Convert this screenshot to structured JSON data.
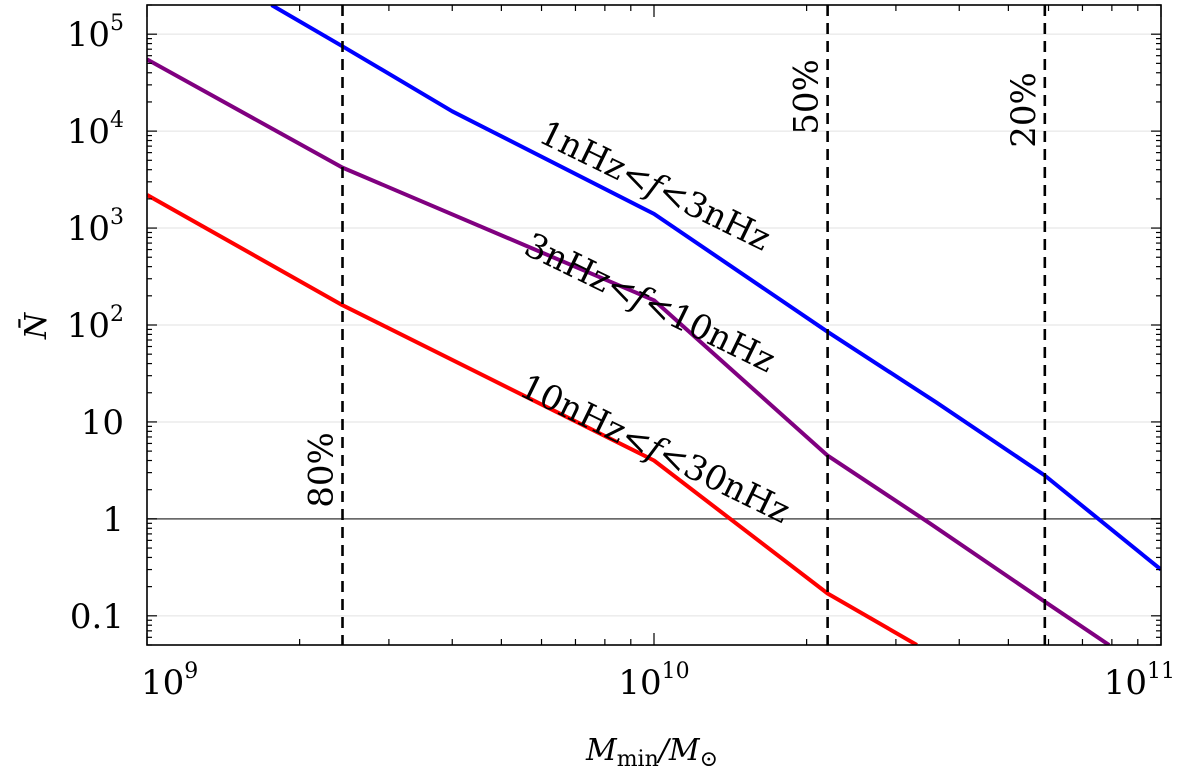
{
  "chart_data": {
    "type": "line",
    "x_scale": "log",
    "y_scale": "log",
    "xlabel_main": "M",
    "xlabel_sub": "min",
    "xlabel_div": "/M",
    "xlabel_sub2": "⊙",
    "ylabel": "N̄",
    "xlim": [
      1000000000.0,
      100000000000.0
    ],
    "ylim": [
      0.05,
      200000
    ],
    "x_ticks": [
      {
        "value": 1000000000.0,
        "base": "10",
        "exp": "9"
      },
      {
        "value": 10000000000.0,
        "base": "10",
        "exp": "10"
      },
      {
        "value": 100000000000.0,
        "base": "10",
        "exp": "11"
      }
    ],
    "y_ticks": [
      {
        "value": 0.1,
        "base": "0.1",
        "exp": ""
      },
      {
        "value": 1,
        "base": "1",
        "exp": ""
      },
      {
        "value": 10,
        "base": "10",
        "exp": ""
      },
      {
        "value": 100,
        "base": "10",
        "exp": "2"
      },
      {
        "value": 1000,
        "base": "10",
        "exp": "3"
      },
      {
        "value": 10000,
        "base": "10",
        "exp": "4"
      },
      {
        "value": 100000,
        "base": "10",
        "exp": "5"
      }
    ],
    "gridlines_y": [
      0.1,
      1,
      10,
      100,
      1000,
      10000,
      100000
    ],
    "series": [
      {
        "name": "1nHz < f < 3nHz",
        "label_parts": [
          "1nHz",
          "<",
          "f",
          "<",
          "3nHz"
        ],
        "color": "#0000ff",
        "points": [
          [
            1760000000.0,
            200000
          ],
          [
            2430000000.0,
            75000
          ],
          [
            4000000000.0,
            16000
          ],
          [
            10000000000.0,
            1400
          ],
          [
            22000000000.0,
            85
          ],
          [
            36000000000.0,
            16
          ],
          [
            59000000000.0,
            2.8
          ],
          [
            100000000000.0,
            0.3
          ]
        ]
      },
      {
        "name": "3nHz < f < 10nHz",
        "label_parts": [
          "3nHz",
          "<",
          "f",
          "<",
          "10nHz"
        ],
        "color": "#800080",
        "points": [
          [
            1000000000.0,
            55000
          ],
          [
            2430000000.0,
            4200
          ],
          [
            10000000000.0,
            180
          ],
          [
            22000000000.0,
            4.5
          ],
          [
            35000000000.0,
            0.9
          ],
          [
            59000000000.0,
            0.14
          ],
          [
            79000000000.0,
            0.05
          ]
        ]
      },
      {
        "name": "10nHz < f < 30nHz",
        "label_parts": [
          "10nHz",
          "<",
          "f",
          "<",
          "30nHz"
        ],
        "color": "#ff0000",
        "points": [
          [
            1000000000.0,
            2200
          ],
          [
            2430000000.0,
            160
          ],
          [
            10000000000.0,
            4
          ],
          [
            22000000000.0,
            0.17
          ],
          [
            33000000000.0,
            0.05
          ]
        ]
      }
    ],
    "vertical_lines": [
      {
        "x": 2430000000.0,
        "label": "80%"
      },
      {
        "x": 22000000000.0,
        "label": "50%"
      },
      {
        "x": 59000000000.0,
        "label": "20%"
      }
    ],
    "hline": 1,
    "grid": true
  }
}
